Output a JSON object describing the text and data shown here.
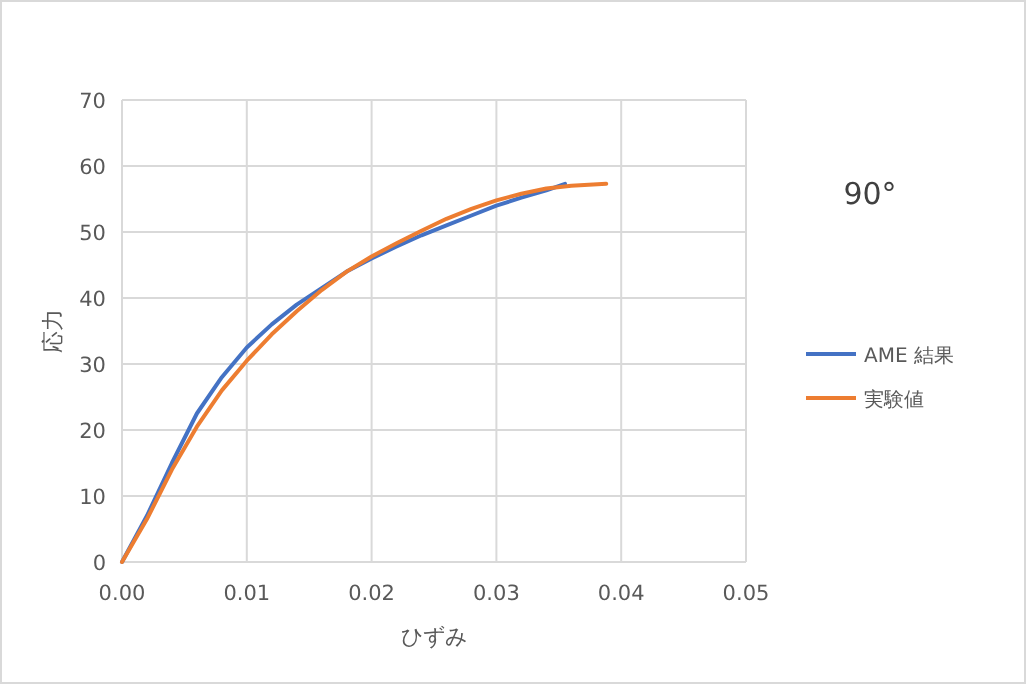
{
  "chart_data": {
    "type": "line",
    "xlabel": "ひずみ",
    "ylabel": "応力",
    "annotations": [
      "90°"
    ],
    "xlim": [
      0,
      0.05
    ],
    "xticks": [
      {
        "value": 0,
        "label": "0.00"
      },
      {
        "value": 0.01,
        "label": "0.01"
      },
      {
        "value": 0.02,
        "label": "0.02"
      },
      {
        "value": 0.03,
        "label": "0.03"
      },
      {
        "value": 0.04,
        "label": "0.04"
      },
      {
        "value": 0.05,
        "label": "0.05"
      }
    ],
    "ylim": [
      0,
      70
    ],
    "yticks": [
      0,
      10,
      20,
      30,
      40,
      50,
      60,
      70
    ],
    "grid": true,
    "legend": "right",
    "marker": "none",
    "line_style": "solid",
    "series": [
      {
        "name": "AME 結果",
        "color": "#4472c4",
        "x": [
          0,
          0.002,
          0.004,
          0.006,
          0.008,
          0.01,
          0.012,
          0.014,
          0.016,
          0.018,
          0.02,
          0.022,
          0.024,
          0.026,
          0.028,
          0.03,
          0.032,
          0.034,
          0.0355
        ],
        "values": [
          0,
          7,
          15,
          22.5,
          28,
          32.5,
          36,
          39,
          41.5,
          44,
          46,
          47.8,
          49.5,
          51,
          52.5,
          54,
          55.2,
          56.3,
          57.3
        ]
      },
      {
        "name": "実験値",
        "color": "#ed7d31",
        "x": [
          0,
          0.002,
          0.004,
          0.006,
          0.008,
          0.01,
          0.012,
          0.014,
          0.016,
          0.018,
          0.02,
          0.022,
          0.024,
          0.026,
          0.028,
          0.03,
          0.032,
          0.034,
          0.036,
          0.0388
        ],
        "values": [
          0,
          6.5,
          14,
          20.5,
          26,
          30.5,
          34.5,
          38,
          41.2,
          44,
          46.3,
          48.3,
          50.2,
          52,
          53.5,
          54.8,
          55.8,
          56.6,
          57,
          57.3
        ]
      }
    ]
  }
}
